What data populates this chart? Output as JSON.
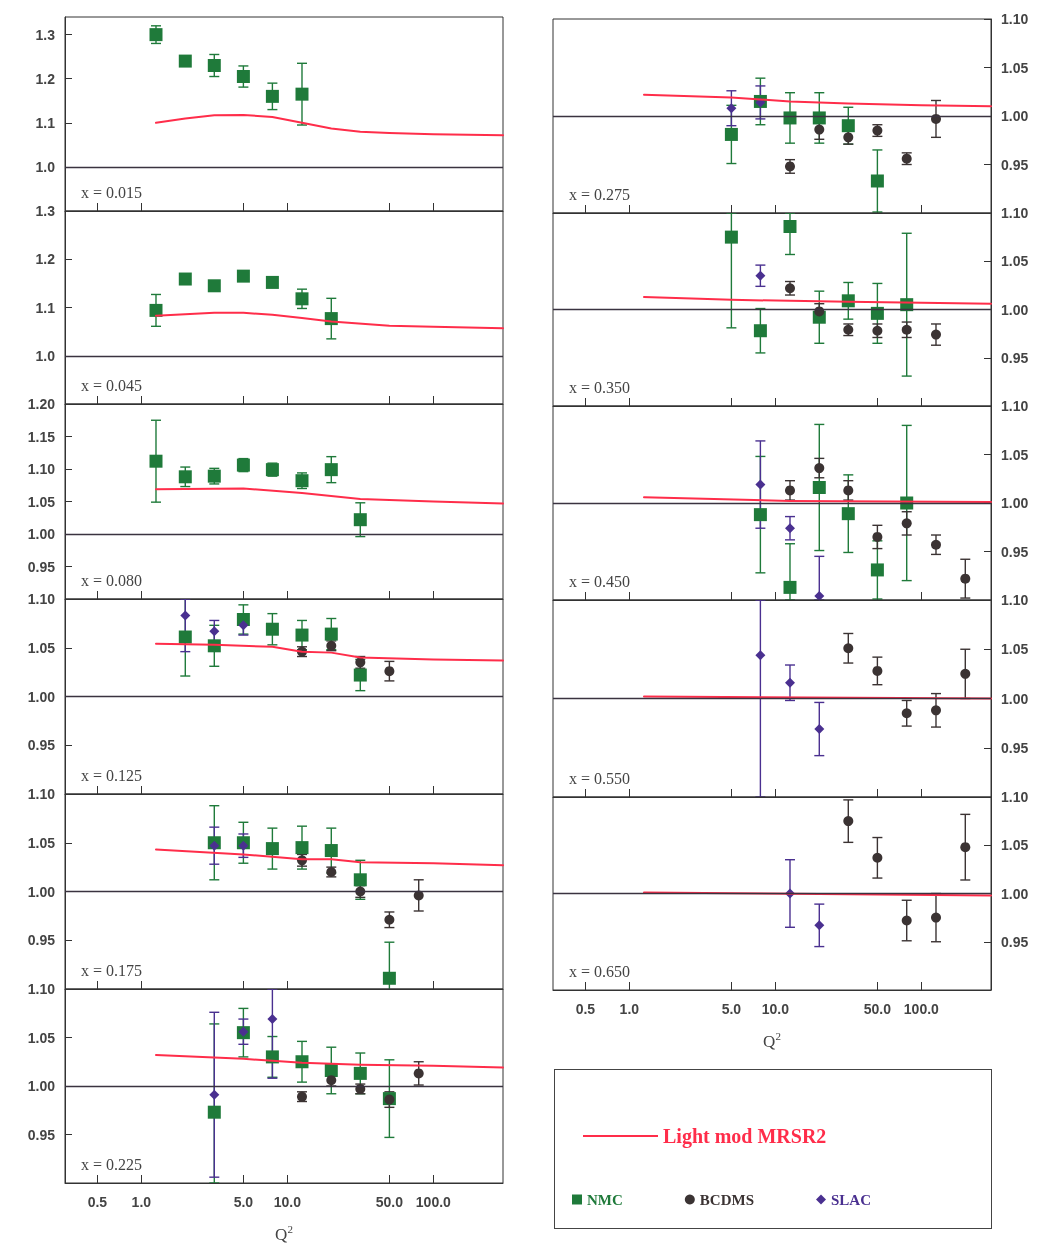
{
  "chart_data": [
    {
      "type": "scatter",
      "log": "x",
      "tick_labels": "y",
      "xlim": [
        0.3,
        300
      ],
      "xticks": [
        {
          "value": 0.5,
          "label": null
        },
        {
          "value": 1,
          "label": null
        },
        {
          "value": 5,
          "label": null
        },
        {
          "value": 10,
          "label": null
        },
        {
          "value": 50,
          "label": null
        },
        {
          "value": 100,
          "label": null
        }
      ],
      "ylim": [
        0.9,
        1.34
      ],
      "yticks": [
        {
          "value": 1,
          "label": "1.0"
        },
        1.1,
        1.2,
        1.3
      ],
      "annotations": [
        "x = 0.015"
      ],
      "ref_lines": [
        {
          "axis": "y",
          "value": 1,
          "color": "#3a3340"
        }
      ],
      "series": [
        {
          "marker": "square",
          "color": "#1f7a3a",
          "x": [
            1.26,
            2,
            3.16,
            5,
            7.9,
            12.6
          ],
          "values": [
            1.3,
            1.24,
            1.23,
            1.205,
            1.16,
            1.165
          ],
          "errors": [
            0.02,
            0.01,
            0.025,
            0.024,
            0.03,
            0.07
          ]
        },
        {
          "type": "line",
          "marker": "none",
          "color": "#ff2d4a",
          "x": [
            1.26,
            2,
            3.16,
            5,
            7.9,
            12.6,
            20,
            31.6,
            50,
            100,
            300
          ],
          "values": [
            1.1,
            1.11,
            1.117,
            1.118,
            1.113,
            1.1,
            1.087,
            1.08,
            1.077,
            1.074,
            1.072
          ]
        }
      ]
    },
    {
      "type": "scatter",
      "log": "x",
      "tick_labels": "y",
      "xlim": [
        0.3,
        300
      ],
      "xticks": [
        {
          "value": 0.5,
          "label": null
        },
        {
          "value": 1,
          "label": null
        },
        {
          "value": 5,
          "label": null
        },
        {
          "value": 10,
          "label": null
        },
        {
          "value": 50,
          "label": null
        },
        {
          "value": 100,
          "label": null
        }
      ],
      "ylim": [
        0.9,
        1.3
      ],
      "yticks": [
        {
          "value": 1,
          "label": "1.0"
        },
        1.1,
        1.2,
        1.3
      ],
      "annotations": [
        "x = 0.045"
      ],
      "ref_lines": [
        {
          "axis": "y",
          "value": 1,
          "color": "#3a3340"
        }
      ],
      "series": [
        {
          "marker": "square",
          "color": "#1f7a3a",
          "x": [
            1.26,
            2,
            3.16,
            5,
            7.9,
            12.6,
            20
          ],
          "values": [
            1.094,
            1.159,
            1.145,
            1.165,
            1.152,
            1.118,
            1.077
          ],
          "errors": [
            0.033,
            0.01,
            0.01,
            0.01,
            0.01,
            0.02,
            0.042
          ]
        },
        {
          "type": "line",
          "marker": "none",
          "color": "#ff2d4a",
          "x": [
            1.26,
            3.16,
            5,
            7.9,
            12.6,
            20,
            50,
            100,
            300
          ],
          "values": [
            1.083,
            1.089,
            1.089,
            1.085,
            1.078,
            1.071,
            1.062,
            1.06,
            1.057
          ]
        }
      ]
    },
    {
      "type": "scatter",
      "log": "x",
      "tick_labels": "y",
      "xlim": [
        0.3,
        300
      ],
      "xticks": [
        {
          "value": 0.5,
          "label": null
        },
        {
          "value": 1,
          "label": null
        },
        {
          "value": 5,
          "label": null
        },
        {
          "value": 10,
          "label": null
        },
        {
          "value": 50,
          "label": null
        },
        {
          "value": 100,
          "label": null
        }
      ],
      "ylim": [
        0.9,
        1.2
      ],
      "yticks": [
        0.95,
        {
          "value": 1,
          "label": "1.00"
        },
        1.05,
        {
          "value": 1.1,
          "label": "1.10"
        },
        1.15,
        {
          "value": 1.2,
          "label": "1.20"
        }
      ],
      "annotations": [
        "x = 0.080"
      ],
      "ref_lines": [
        {
          "axis": "y",
          "value": 1,
          "color": "#3a3340"
        }
      ],
      "series": [
        {
          "marker": "square",
          "color": "#1f7a3a",
          "x": [
            1.26,
            2,
            3.16,
            5,
            7.9,
            12.6,
            20,
            31.6
          ],
          "values": [
            1.112,
            1.088,
            1.089,
            1.106,
            1.099,
            1.082,
            1.099,
            1.022
          ],
          "errors": [
            0.063,
            0.015,
            0.012,
            0.01,
            0.01,
            0.012,
            0.02,
            0.026
          ]
        },
        {
          "type": "line",
          "marker": "none",
          "color": "#ff2d4a",
          "x": [
            1.26,
            5,
            12.6,
            31.6,
            100,
            300
          ],
          "values": [
            1.069,
            1.07,
            1.063,
            1.054,
            1.05,
            1.047
          ]
        }
      ]
    },
    {
      "type": "scatter",
      "log": "x",
      "tick_labels": "y",
      "xlim": [
        0.3,
        300
      ],
      "xticks": [
        {
          "value": 0.5,
          "label": null
        },
        {
          "value": 1,
          "label": null
        },
        {
          "value": 5,
          "label": null
        },
        {
          "value": 10,
          "label": null
        },
        {
          "value": 50,
          "label": null
        },
        {
          "value": 100,
          "label": null
        }
      ],
      "ylim": [
        0.9,
        1.1
      ],
      "yticks": [
        0.95,
        {
          "value": 1,
          "label": "1.00"
        },
        1.05,
        {
          "value": 1.1,
          "label": "1.10"
        }
      ],
      "annotations": [
        "x = 0.125"
      ],
      "ref_lines": [
        {
          "axis": "y",
          "value": 1,
          "color": "#3a3340"
        }
      ],
      "series": [
        {
          "marker": "square",
          "color": "#1f7a3a",
          "x": [
            2,
            3.16,
            5,
            7.9,
            12.6,
            20,
            31.6
          ],
          "values": [
            1.061,
            1.052,
            1.079,
            1.069,
            1.063,
            1.064,
            1.022
          ],
          "errors": [
            0.04,
            0.021,
            0.015,
            0.016,
            0.015,
            0.016,
            0.016
          ]
        },
        {
          "marker": "circle",
          "color": "#3b3333",
          "x": [
            12.6,
            20,
            31.6,
            50
          ],
          "values": [
            1.046,
            1.052,
            1.035,
            1.026
          ],
          "errors": [
            0.005,
            0.005,
            0.006,
            0.01
          ]
        },
        {
          "marker": "diamond",
          "color": "#4a3090",
          "x": [
            2,
            3.16,
            5
          ],
          "values": [
            1.083,
            1.067,
            1.073
          ],
          "errors": [
            [
              1.046,
              1.1
            ],
            0.011,
            0.01
          ]
        },
        {
          "type": "line",
          "marker": "none",
          "color": "#ff2d4a",
          "x": [
            1.26,
            3.16,
            7.9,
            12.6,
            20,
            31.6,
            100,
            300
          ],
          "values": [
            1.054,
            1.053,
            1.051,
            1.046,
            1.045,
            1.04,
            1.038,
            1.037
          ]
        }
      ]
    },
    {
      "type": "scatter",
      "log": "x",
      "tick_labels": "y",
      "xlim": [
        0.3,
        300
      ],
      "xticks": [
        {
          "value": 0.5,
          "label": null
        },
        {
          "value": 1,
          "label": null
        },
        {
          "value": 5,
          "label": null
        },
        {
          "value": 10,
          "label": null
        },
        {
          "value": 50,
          "label": null
        },
        {
          "value": 100,
          "label": null
        }
      ],
      "ylim": [
        0.9,
        1.1
      ],
      "yticks": [
        0.95,
        {
          "value": 1,
          "label": "1.00"
        },
        1.05,
        {
          "value": 1.1,
          "label": "1.10"
        }
      ],
      "annotations": [
        "x = 0.175"
      ],
      "ref_lines": [
        {
          "axis": "y",
          "value": 1,
          "color": "#3a3340"
        }
      ],
      "series": [
        {
          "marker": "square",
          "color": "#1f7a3a",
          "x": [
            3.16,
            5,
            7.9,
            12.6,
            20,
            31.6,
            50
          ],
          "values": [
            1.05,
            1.05,
            1.044,
            1.045,
            1.042,
            1.012,
            0.911
          ],
          "errors": [
            0.038,
            0.021,
            0.021,
            0.022,
            0.023,
            0.02,
            0.037
          ]
        },
        {
          "marker": "circle",
          "color": "#3b3333",
          "x": [
            12.6,
            20,
            31.6,
            50,
            79.4
          ],
          "values": [
            1.032,
            1.02,
            1.0,
            0.971,
            0.996
          ],
          "errors": [
            0.006,
            0.005,
            0.006,
            0.008,
            0.016
          ]
        },
        {
          "marker": "diamond",
          "color": "#4a3090",
          "x": [
            3.16,
            5
          ],
          "values": [
            1.047,
            1.047
          ],
          "errors": [
            0.019,
            0.012
          ]
        },
        {
          "type": "line",
          "marker": "none",
          "color": "#ff2d4a",
          "x": [
            1.26,
            5,
            12.6,
            20,
            31.6,
            100,
            300
          ],
          "values": [
            1.043,
            1.038,
            1.033,
            1.033,
            1.03,
            1.029,
            1.027
          ]
        }
      ]
    },
    {
      "type": "scatter",
      "log": "x",
      "xlabel": "Q$^{2}$",
      "xlim": [
        0.3,
        300
      ],
      "xticks": [
        0.5,
        {
          "value": 1,
          "label": "1.0"
        },
        {
          "value": 5,
          "label": "5.0"
        },
        {
          "value": 10,
          "label": "10.0"
        },
        {
          "value": 50,
          "label": "50.0"
        },
        {
          "value": 100,
          "label": "100.0"
        }
      ],
      "ylim": [
        0.9,
        1.1
      ],
      "yticks": [
        0.95,
        {
          "value": 1,
          "label": "1.00"
        },
        1.05,
        {
          "value": 1.1,
          "label": "1.10"
        }
      ],
      "annotations": [
        "x = 0.225"
      ],
      "ref_lines": [
        {
          "axis": "y",
          "value": 1,
          "color": "#3a3340"
        }
      ],
      "series": [
        {
          "marker": "square",
          "color": "#1f7a3a",
          "x": [
            3.16,
            5,
            7.9,
            12.6,
            20,
            31.6,
            50
          ],
          "values": [
            0.973,
            1.055,
            1.03,
            1.025,
            1.016,
            1.013,
            0.987
          ],
          "errors": [
            [
              0.9,
              1.064
            ],
            0.025,
            0.021,
            0.021,
            0.024,
            0.021,
            0.04
          ]
        },
        {
          "marker": "circle",
          "color": "#3b3333",
          "x": [
            12.6,
            20,
            31.6,
            50,
            79.4
          ],
          "values": [
            0.989,
            1.006,
            0.997,
            0.986,
            1.013
          ],
          "errors": [
            0.005,
            0.006,
            0.005,
            0.008,
            0.012
          ]
        },
        {
          "marker": "diamond",
          "color": "#4a3090",
          "x": [
            3.16,
            5,
            7.9
          ],
          "values": [
            0.991,
            1.056,
            1.069
          ],
          "errors": [
            0.085,
            0.013,
            [
              1.008,
              1.1
            ]
          ]
        },
        {
          "type": "line",
          "marker": "none",
          "color": "#ff2d4a",
          "x": [
            1.26,
            5,
            12.6,
            31.6,
            100,
            300
          ],
          "values": [
            1.032,
            1.028,
            1.024,
            1.022,
            1.021,
            1.019
          ]
        }
      ]
    },
    {
      "type": "scatter",
      "log": "x",
      "tick_labels": "y",
      "xlim": [
        0.3,
        300
      ],
      "xticks": [
        {
          "value": 0.5,
          "label": null
        },
        {
          "value": 1,
          "label": null
        },
        {
          "value": 5,
          "label": null
        },
        {
          "value": 10,
          "label": null
        },
        {
          "value": 50,
          "label": null
        },
        {
          "value": 100,
          "label": null
        }
      ],
      "ylim": [
        0.9,
        1.1
      ],
      "yticks": [
        0.95,
        {
          "value": 1,
          "label": "1.00"
        },
        1.05,
        {
          "value": 1.1,
          "label": "1.10"
        }
      ],
      "annotations": [
        "x = 0.275"
      ],
      "ref_lines": [
        {
          "axis": "y",
          "value": 1,
          "color": "#3a3340"
        }
      ],
      "series": [
        {
          "marker": "square",
          "color": "#1f7a3a",
          "x": [
            5,
            7.9,
            12.6,
            20,
            31.6,
            50
          ],
          "values": [
            0.981,
            1.015,
            0.998,
            0.998,
            0.99,
            0.933
          ],
          "errors": [
            0.03,
            0.024,
            0.026,
            0.026,
            0.019,
            0.032
          ]
        },
        {
          "marker": "circle",
          "color": "#3b3333",
          "x": [
            12.6,
            20,
            31.6,
            50,
            79.4,
            126
          ],
          "values": [
            0.948,
            0.986,
            0.978,
            0.985,
            0.956,
            0.997
          ],
          "errors": [
            0.007,
            0.01,
            0.007,
            0.006,
            0.006,
            0.019
          ]
        },
        {
          "marker": "diamond",
          "color": "#4a3090",
          "x": [
            5,
            7.9
          ],
          "values": [
            1.008,
            1.014
          ],
          "errors": [
            0.018,
            0.017
          ]
        },
        {
          "type": "line",
          "marker": "none",
          "color": "#ff2d4a",
          "x": [
            1.26,
            5,
            12.6,
            31.6,
            100,
            300
          ],
          "values": [
            1.022,
            1.019,
            1.015,
            1.013,
            1.011,
            1.01
          ]
        }
      ]
    },
    {
      "type": "scatter",
      "log": "x",
      "tick_labels": "y",
      "xlim": [
        0.3,
        300
      ],
      "xticks": [
        {
          "value": 0.5,
          "label": null
        },
        {
          "value": 1,
          "label": null
        },
        {
          "value": 5,
          "label": null
        },
        {
          "value": 10,
          "label": null
        },
        {
          "value": 50,
          "label": null
        },
        {
          "value": 100,
          "label": null
        }
      ],
      "ylim": [
        0.9,
        1.1
      ],
      "yticks": [
        0.95,
        {
          "value": 1,
          "label": "1.00"
        },
        1.05,
        {
          "value": 1.1,
          "label": "1.10"
        }
      ],
      "annotations": [
        "x = 0.350"
      ],
      "ref_lines": [
        {
          "axis": "y",
          "value": 1,
          "color": "#3a3340"
        }
      ],
      "series": [
        {
          "marker": "square",
          "color": "#1f7a3a",
          "x": [
            5,
            7.9,
            12.6,
            20,
            31.6,
            50,
            79.4
          ],
          "values": [
            1.075,
            0.978,
            1.086,
            0.992,
            1.009,
            0.996,
            1.005
          ],
          "errors": [
            [
              0.981,
              1.1
            ],
            0.023,
            [
              1.057,
              1.1
            ],
            0.027,
            0.019,
            0.031,
            0.074
          ]
        },
        {
          "marker": "circle",
          "color": "#3b3333",
          "x": [
            12.6,
            20,
            31.6,
            50,
            79.4,
            126
          ],
          "values": [
            1.022,
            0.998,
            0.979,
            0.978,
            0.979,
            0.974
          ],
          "errors": [
            0.007,
            0.008,
            0.006,
            0.007,
            0.008,
            0.011
          ]
        },
        {
          "marker": "diamond",
          "color": "#4a3090",
          "x": [
            7.9
          ],
          "values": [
            1.035
          ],
          "errors": [
            0.011
          ]
        },
        {
          "type": "line",
          "marker": "none",
          "color": "#ff2d4a",
          "x": [
            1.26,
            5,
            12.6,
            31.6,
            100,
            300
          ],
          "values": [
            1.013,
            1.01,
            1.009,
            1.008,
            1.007,
            1.006
          ]
        }
      ]
    },
    {
      "type": "scatter",
      "log": "x",
      "tick_labels": "y",
      "xlim": [
        0.3,
        300
      ],
      "xticks": [
        {
          "value": 0.5,
          "label": null
        },
        {
          "value": 1,
          "label": null
        },
        {
          "value": 5,
          "label": null
        },
        {
          "value": 10,
          "label": null
        },
        {
          "value": 50,
          "label": null
        },
        {
          "value": 100,
          "label": null
        }
      ],
      "ylim": [
        0.9,
        1.1
      ],
      "yticks": [
        0.95,
        {
          "value": 1,
          "label": "1.00"
        },
        1.05,
        {
          "value": 1.1,
          "label": "1.10"
        }
      ],
      "annotations": [
        "x = 0.450"
      ],
      "ref_lines": [
        {
          "axis": "y",
          "value": 1,
          "color": "#3a3340"
        }
      ],
      "series": [
        {
          "marker": "square",
          "color": "#1f7a3a",
          "x": [
            7.9,
            12.6,
            20,
            31.6,
            50,
            79.4
          ],
          "values": [
            0.988,
            0.913,
            1.016,
            0.989,
            0.931,
            1.0
          ],
          "errors": [
            0.06,
            [
              0.9,
              0.958
            ],
            0.065,
            0.04,
            0.03,
            0.08
          ]
        },
        {
          "marker": "circle",
          "color": "#3b3333",
          "x": [
            12.6,
            20,
            31.6,
            50,
            79.4,
            126,
            200
          ],
          "values": [
            1.013,
            1.036,
            1.013,
            0.965,
            0.979,
            0.957,
            0.922
          ],
          "errors": [
            0.01,
            0.01,
            0.01,
            0.012,
            0.012,
            0.01,
            0.02
          ]
        },
        {
          "marker": "diamond",
          "color": "#4a3090",
          "x": [
            7.9,
            12.6,
            20
          ],
          "values": [
            1.019,
            0.974,
            0.904
          ],
          "errors": [
            0.045,
            0.012,
            [
              0.9,
              0.945
            ]
          ]
        },
        {
          "type": "line",
          "marker": "none",
          "color": "#ff2d4a",
          "x": [
            1.26,
            12.6,
            300
          ],
          "values": [
            1.006,
            1.002,
            1.001
          ]
        }
      ]
    },
    {
      "type": "scatter",
      "log": "x",
      "tick_labels": "y",
      "xlim": [
        0.3,
        300
      ],
      "xticks": [
        {
          "value": 0.5,
          "label": null
        },
        {
          "value": 1,
          "label": null
        },
        {
          "value": 5,
          "label": null
        },
        {
          "value": 10,
          "label": null
        },
        {
          "value": 50,
          "label": null
        },
        {
          "value": 100,
          "label": null
        }
      ],
      "ylim": [
        0.9,
        1.1
      ],
      "yticks": [
        0.95,
        {
          "value": 1,
          "label": "1.00"
        },
        1.05,
        {
          "value": 1.1,
          "label": "1.10"
        }
      ],
      "annotations": [
        "x = 0.550"
      ],
      "ref_lines": [
        {
          "axis": "y",
          "value": 1,
          "color": "#3a3340"
        }
      ],
      "series": [
        {
          "marker": "circle",
          "color": "#3b3333",
          "x": [
            31.6,
            50,
            79.4,
            126,
            200
          ],
          "values": [
            1.051,
            1.028,
            0.985,
            0.988,
            1.025
          ],
          "errors": [
            0.015,
            0.014,
            0.013,
            0.017,
            0.025
          ]
        },
        {
          "marker": "diamond",
          "color": "#4a3090",
          "x": [
            7.9,
            12.6,
            20
          ],
          "values": [
            1.044,
            1.016,
            0.969
          ],
          "errors": [
            [
              0.9,
              1.1
            ],
            0.018,
            0.027
          ]
        },
        {
          "type": "line",
          "marker": "none",
          "color": "#ff2d4a",
          "x": [
            1.26,
            300
          ],
          "values": [
            1.002,
            1.0
          ]
        }
      ]
    },
    {
      "type": "scatter",
      "log": "x",
      "xlabel": "Q$^{2}$",
      "legend": "bottom",
      "xlim": [
        0.3,
        300
      ],
      "xticks": [
        0.5,
        {
          "value": 1,
          "label": "1.0"
        },
        {
          "value": 5,
          "label": "5.0"
        },
        {
          "value": 10,
          "label": "10.0"
        },
        {
          "value": 50,
          "label": "50.0"
        },
        {
          "value": 100,
          "label": "100.0"
        }
      ],
      "ylim": [
        0.9,
        1.1
      ],
      "yticks": [
        0.95,
        {
          "value": 1,
          "label": "1.00"
        },
        1.05,
        {
          "value": 1.1,
          "label": "1.10"
        }
      ],
      "annotations": [
        "x = 0.650"
      ],
      "ref_lines": [
        {
          "axis": "y",
          "value": 1,
          "color": "#3a3340"
        }
      ],
      "series": [
        {
          "name": "NMC",
          "marker": "square",
          "color": "#1f7a3a"
        },
        {
          "name": "BCDMS",
          "marker": "circle",
          "color": "#3b3333",
          "x": [
            31.6,
            50,
            79.4,
            126,
            200
          ],
          "values": [
            1.075,
            1.037,
            0.972,
            0.975,
            1.048
          ],
          "errors": [
            0.022,
            0.021,
            0.021,
            0.025,
            0.034
          ]
        },
        {
          "name": "SLAC",
          "marker": "diamond",
          "color": "#4a3090",
          "x": [
            12.6,
            20
          ],
          "values": [
            1.0,
            0.967
          ],
          "errors": [
            0.035,
            0.022
          ]
        },
        {
          "name": "Light mod MRSR2",
          "type": "line",
          "marker": "none",
          "color": "#ff2d4a",
          "x": [
            1.26,
            300
          ],
          "values": [
            1.001,
            0.998
          ]
        }
      ]
    }
  ]
}
